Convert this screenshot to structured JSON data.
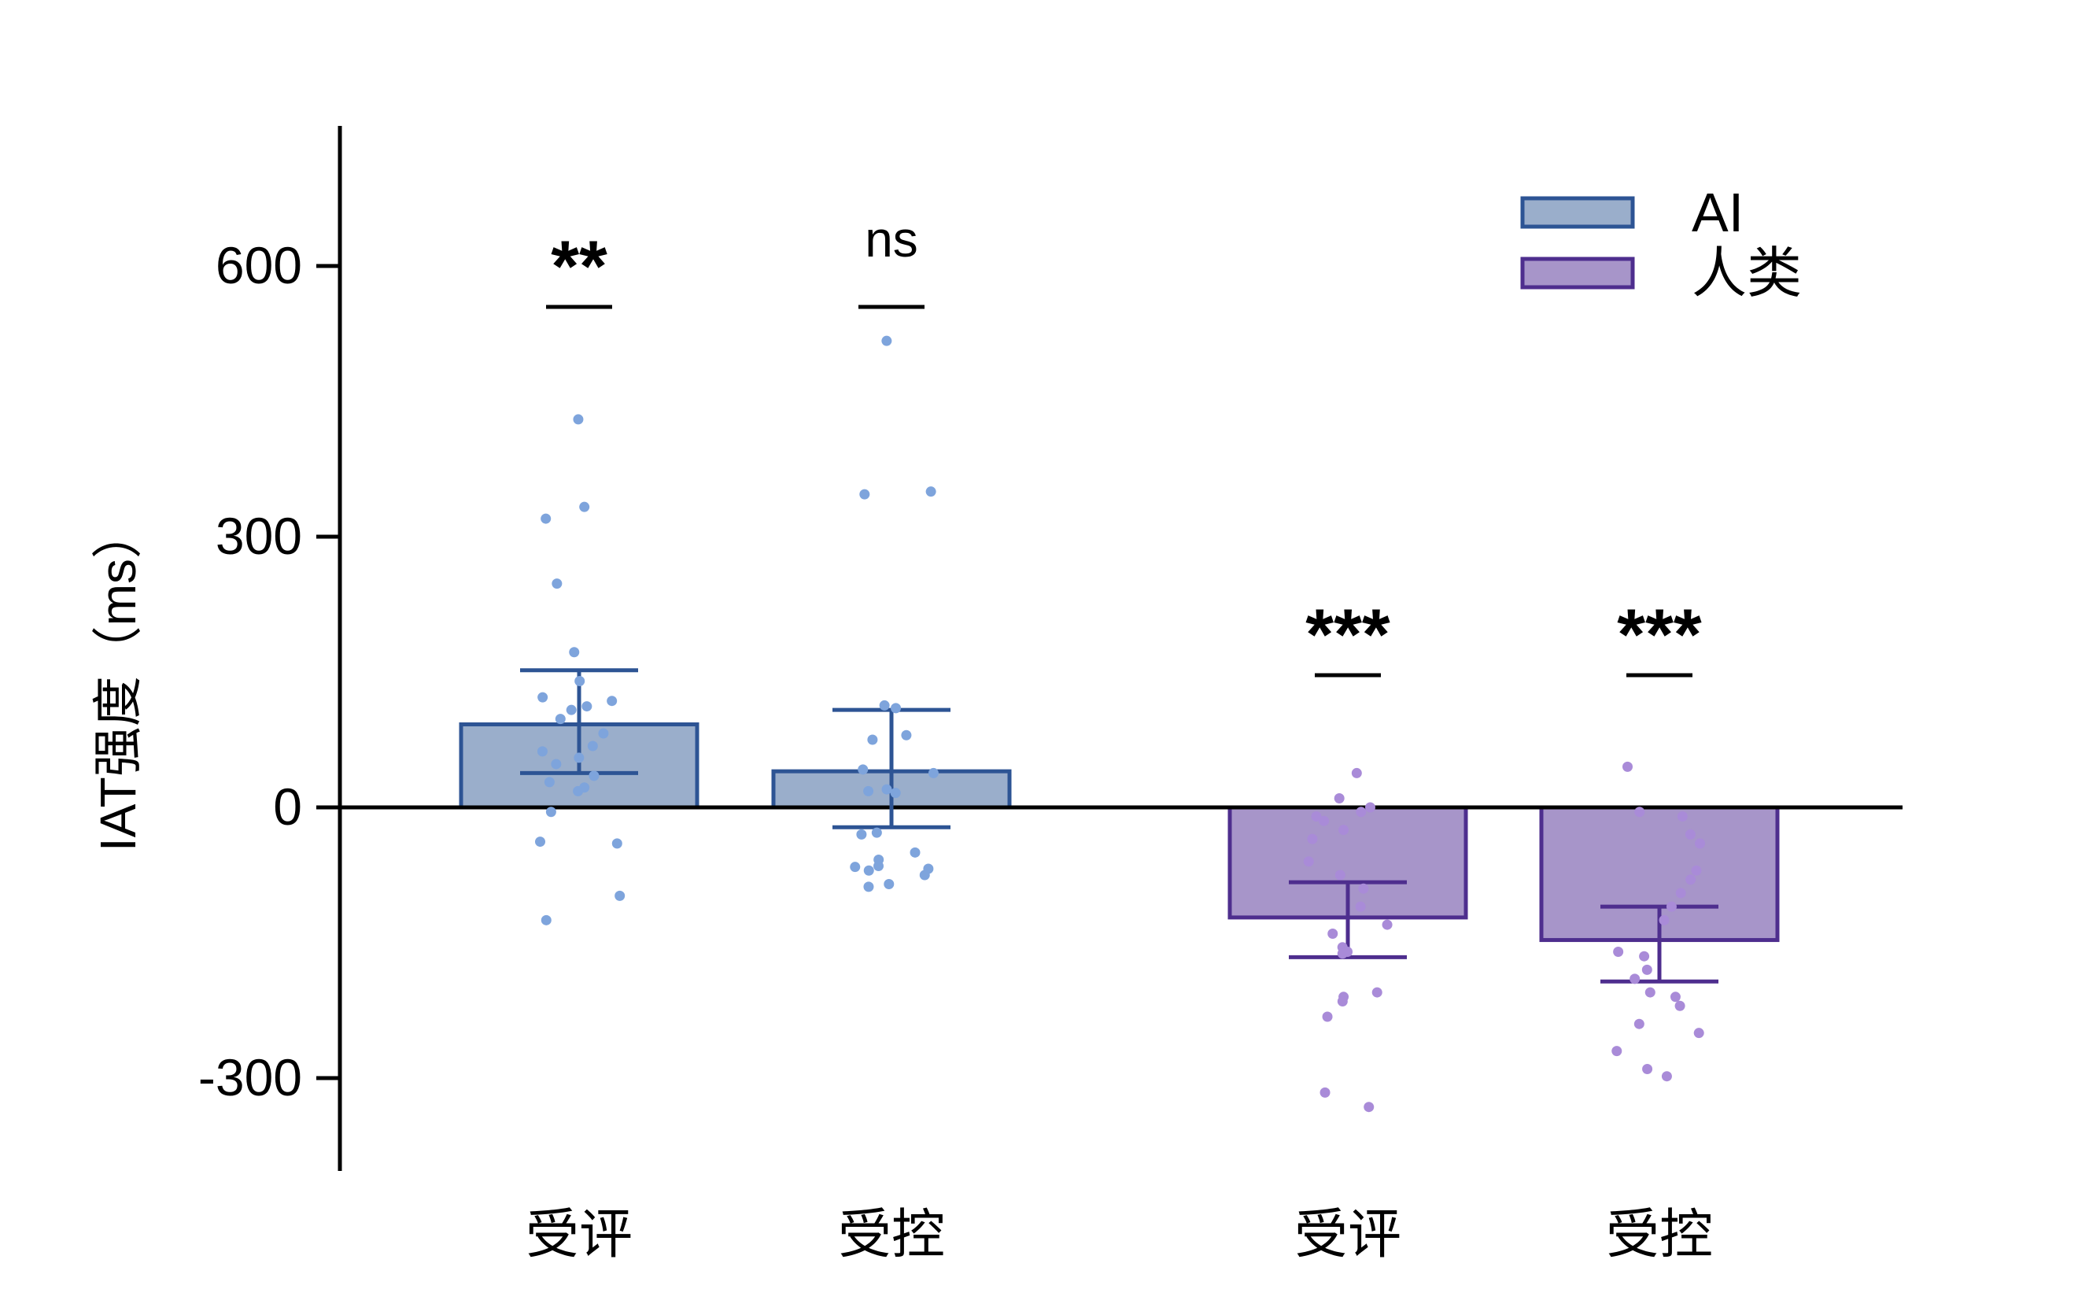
{
  "chart_data": {
    "type": "bar",
    "title": "",
    "xlabel": "",
    "ylabel": "IAT强度（ms）",
    "ylim": [
      -450,
      750
    ],
    "yticks": [
      -300,
      0,
      300,
      600
    ],
    "grid": false,
    "legend_position": "top-right",
    "groups": [
      {
        "series": "AI",
        "bars": [
          {
            "category": "受评",
            "mean": 92,
            "error_low": 38,
            "error_high": 152,
            "significance": "**",
            "points": [
              430,
              333,
              320,
              248,
              172,
              140,
              122,
              118,
              112,
              108,
              98,
              82,
              68,
              62,
              55,
              48,
              35,
              28,
              22,
              18,
              -5,
              -38,
              -40,
              -98,
              -125
            ]
          },
          {
            "category": "受控",
            "mean": 40,
            "error_low": -22,
            "error_high": 108,
            "significance": "ns",
            "points": [
              517,
              350,
              347,
              113,
              110,
              80,
              75,
              42,
              38,
              20,
              18,
              16,
              -28,
              -30,
              -50,
              -58,
              -65,
              -66,
              -68,
              -70,
              -75,
              -85,
              -88
            ]
          }
        ]
      },
      {
        "series": "人类",
        "bars": [
          {
            "category": "受评",
            "mean": -122,
            "error_low": -166,
            "error_high": -83,
            "significance": "***",
            "points": [
              38,
              10,
              0,
              -5,
              -10,
              -15,
              -25,
              -35,
              -60,
              -75,
              -90,
              -110,
              -130,
              -140,
              -155,
              -160,
              -162,
              -205,
              -210,
              -215,
              -232,
              -316,
              -332
            ]
          },
          {
            "category": "受控",
            "mean": -147,
            "error_low": -193,
            "error_high": -110,
            "significance": "***",
            "points": [
              45,
              -5,
              -10,
              -30,
              -40,
              -70,
              -80,
              -95,
              -110,
              -125,
              -160,
              -165,
              -180,
              -190,
              -205,
              -210,
              -220,
              -240,
              -250,
              -270,
              -290,
              -298
            ]
          }
        ]
      }
    ],
    "series_styles": [
      {
        "name": "AI",
        "fill": "#9aaecb",
        "stroke": "#2d5494",
        "point_color": "#7ea4dc"
      },
      {
        "name": "人类",
        "fill": "#a795c9",
        "stroke": "#4e2e8e",
        "point_color": "#a98bd8"
      }
    ]
  }
}
